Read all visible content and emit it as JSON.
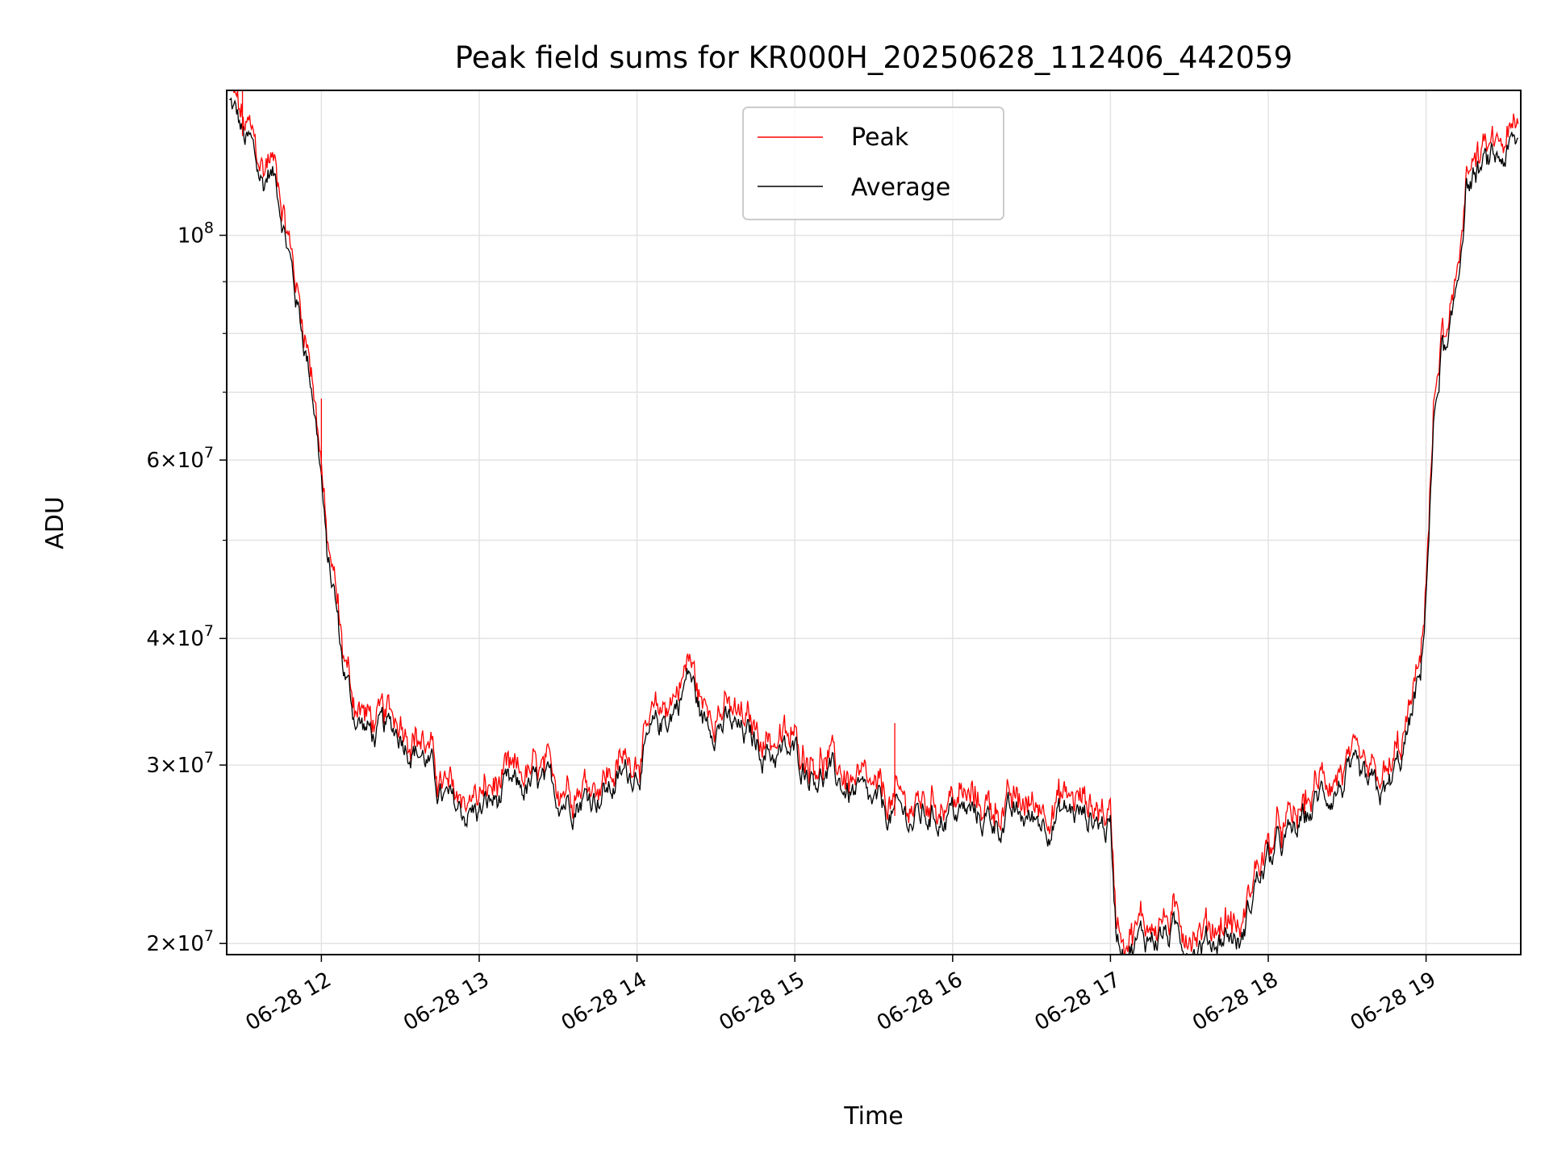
{
  "chart_data": {
    "type": "line",
    "title": "Peak field sums for KR000H_20250628_112406_442059",
    "xlabel": "Time",
    "ylabel": "ADU",
    "y_scale": "log",
    "ylim": [
      19500000,
      139000000
    ],
    "xlim": [
      "2025-06-28 11:24",
      "2025-06-28 19:36"
    ],
    "grid": true,
    "legend_position": "upper center",
    "x_tick_labels": [
      "06-28 12",
      "06-28 13",
      "06-28 14",
      "06-28 15",
      "06-28 16",
      "06-28 17",
      "06-28 18",
      "06-28 19"
    ],
    "y_major_tick_labels": [
      {
        "value": 100000000,
        "mantissa": "",
        "exponent": "8"
      },
      {
        "value": 60000000,
        "mantissa": "6",
        "exponent": "7"
      },
      {
        "value": 40000000,
        "mantissa": "4",
        "exponent": "7"
      },
      {
        "value": 30000000,
        "mantissa": "3",
        "exponent": "7"
      },
      {
        "value": 20000000,
        "mantissa": "2",
        "exponent": "7"
      }
    ],
    "y_minor_ticks": [
      90000000,
      80000000,
      70000000,
      50000000
    ],
    "series": [
      {
        "name": "Peak",
        "color": "#ff0000",
        "spikes": [
          {
            "x": "2025-06-28 11:30",
            "y": 139000000
          },
          {
            "x": "2025-06-28 12:00",
            "y": 69000000
          },
          {
            "x": "2025-06-28 15:38",
            "y": 33000000
          },
          {
            "x": "2025-06-28 18:05",
            "y": 25800000
          }
        ]
      },
      {
        "name": "Average",
        "color": "#000000",
        "x": [
          "2025-06-28 11:25",
          "2025-06-28 11:28",
          "2025-06-28 11:31",
          "2025-06-28 11:33",
          "2025-06-28 11:36",
          "2025-06-28 11:38",
          "2025-06-28 11:40",
          "2025-06-28 11:43",
          "2025-06-28 11:45",
          "2025-06-28 11:48",
          "2025-06-28 11:50",
          "2025-06-28 11:53",
          "2025-06-28 11:55",
          "2025-06-28 11:57",
          "2025-06-28 12:00",
          "2025-06-28 12:02",
          "2025-06-28 12:05",
          "2025-06-28 12:08",
          "2025-06-28 12:12",
          "2025-06-28 12:15",
          "2025-06-28 12:20",
          "2025-06-28 12:30",
          "2025-06-28 12:40",
          "2025-06-28 12:45",
          "2025-06-28 12:50",
          "2025-06-28 13:00",
          "2025-06-28 13:10",
          "2025-06-28 13:20",
          "2025-06-28 13:30",
          "2025-06-28 13:40",
          "2025-06-28 13:50",
          "2025-06-28 14:00",
          "2025-06-28 14:10",
          "2025-06-28 14:15",
          "2025-06-28 14:20",
          "2025-06-28 14:25",
          "2025-06-28 14:30",
          "2025-06-28 14:40",
          "2025-06-28 14:50",
          "2025-06-28 15:00",
          "2025-06-28 15:15",
          "2025-06-28 15:30",
          "2025-06-28 15:45",
          "2025-06-28 16:00",
          "2025-06-28 16:15",
          "2025-06-28 16:30",
          "2025-06-28 16:45",
          "2025-06-28 16:55",
          "2025-06-28 17:00",
          "2025-06-28 17:02",
          "2025-06-28 17:05",
          "2025-06-28 17:20",
          "2025-06-28 17:35",
          "2025-06-28 17:45",
          "2025-06-28 17:50",
          "2025-06-28 17:55",
          "2025-06-28 18:00",
          "2025-06-28 18:05",
          "2025-06-28 18:10",
          "2025-06-28 18:20",
          "2025-06-28 18:30",
          "2025-06-28 18:38",
          "2025-06-28 18:45",
          "2025-06-28 18:50",
          "2025-06-28 18:53",
          "2025-06-28 18:56",
          "2025-06-28 18:58",
          "2025-06-28 19:00",
          "2025-06-28 19:03",
          "2025-06-28 19:06",
          "2025-06-28 19:08",
          "2025-06-28 19:10",
          "2025-06-28 19:13",
          "2025-06-28 19:15",
          "2025-06-28 19:20",
          "2025-06-28 19:25",
          "2025-06-28 19:30",
          "2025-06-28 19:35"
        ],
        "y": [
          135000000,
          130000000,
          123000000,
          122000000,
          115000000,
          112000000,
          116000000,
          113000000,
          106000000,
          95000000,
          88000000,
          80000000,
          75000000,
          70000000,
          58000000,
          48000000,
          44000000,
          38000000,
          34000000,
          33000000,
          32000000,
          32500000,
          30500000,
          28000000,
          27000000,
          27000000,
          28000000,
          28500000,
          28000000,
          28000000,
          28500000,
          30000000,
          33000000,
          34500000,
          37000000,
          33000000,
          33500000,
          32000000,
          31000000,
          30500000,
          29000000,
          27000000,
          26500000,
          27000000,
          26500000,
          26500000,
          27000000,
          26500000,
          26000000,
          21000000,
          20000000,
          20500000,
          20000000,
          20500000,
          20000000,
          23000000,
          24000000,
          25000000,
          25500000,
          28000000,
          29000000,
          28000000,
          28000000,
          30000000,
          32000000,
          35000000,
          36000000,
          45000000,
          65000000,
          78000000,
          75000000,
          80000000,
          95000000,
          112000000,
          115000000,
          117000000,
          120000000,
          122000000
        ]
      }
    ]
  }
}
